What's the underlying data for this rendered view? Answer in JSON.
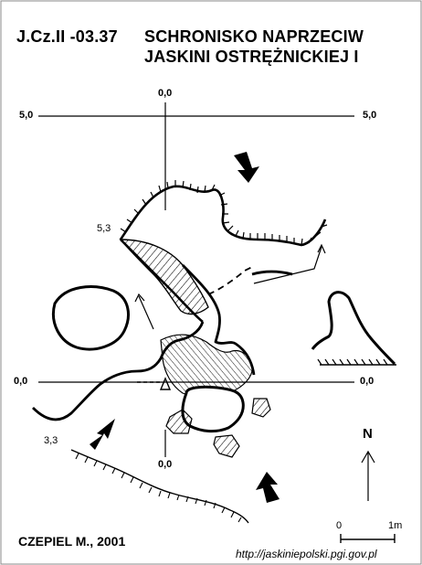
{
  "map": {
    "cave_id": "J.Cz.II -03.37",
    "name_line1": "SCHRONISKO NAPRZECIW",
    "name_line2": "JASKINI OSTRĘŻNICKIEJ I",
    "coordinates": {
      "top": "0,0",
      "bottom": "0,0",
      "left_mid": "0,0",
      "right_mid": "0,0",
      "left_top": "5,0",
      "right_top": "5,0"
    },
    "elevations": [
      "5,3",
      "3,3"
    ],
    "north_label": "N",
    "scale": {
      "start": "0",
      "end": "1m"
    },
    "author": "CZEPIEL M., 2001",
    "url": "http://jaskiniepolski.pgi.gov.pl"
  }
}
